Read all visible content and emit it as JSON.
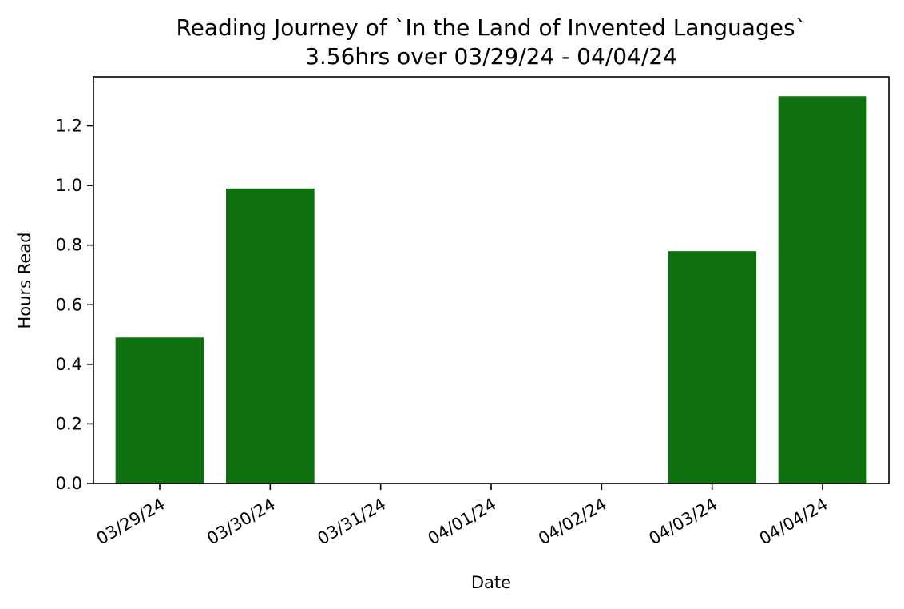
{
  "chart_data": {
    "type": "bar",
    "title": "Reading Journey of `In the Land of Invented Languages`",
    "subtitle": "3.56hrs over 03/29/24 - 04/04/24",
    "xlabel": "Date",
    "ylabel": "Hours Read",
    "categories": [
      "03/29/24",
      "03/30/24",
      "03/31/24",
      "04/01/24",
      "04/02/24",
      "04/03/24",
      "04/04/24"
    ],
    "values": [
      0.49,
      0.99,
      0,
      0,
      0,
      0.78,
      1.3
    ],
    "ylim": [
      0,
      1.365
    ],
    "yticks": [
      "0.0",
      "0.2",
      "0.4",
      "0.6",
      "0.8",
      "1.0",
      "1.2"
    ],
    "bar_color": "#0e700e",
    "grid": false,
    "legend": "none"
  }
}
